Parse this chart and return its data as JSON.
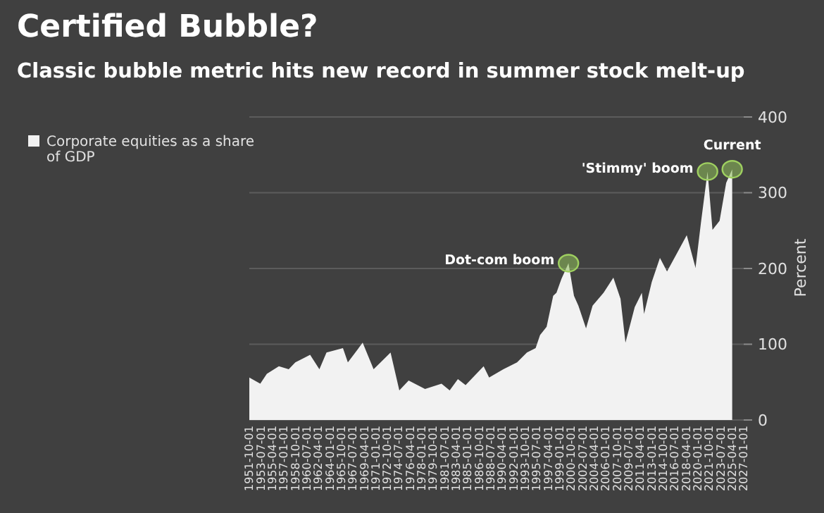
{
  "chart_data": {
    "type": "area",
    "title": "Certified Bubble?",
    "subtitle": "Classic bubble metric hits new record in summer stock melt-up",
    "ylabel": "Percent",
    "x": [
      "1951-10",
      "1953-06",
      "1954-06",
      "1956-04",
      "1957-10",
      "1958-10",
      "1961-01",
      "1962-06",
      "1963-07",
      "1966-01",
      "1966-10",
      "1969-01",
      "1970-09",
      "1973-04",
      "1974-08",
      "1976-01",
      "1978-07",
      "1981-01",
      "1982-04",
      "1983-07",
      "1984-09",
      "1987-06",
      "1988-04",
      "1990-06",
      "1992-07",
      "1994-01",
      "1995-05",
      "1996-01",
      "1997-01",
      "1998-01",
      "1998-07",
      "1999-04",
      "2000-05",
      "2001-03",
      "2001-11",
      "2003-01",
      "2004-01",
      "2005-09",
      "2007-03",
      "2008-04",
      "2009-01",
      "2010-06",
      "2011-07",
      "2011-11",
      "2013-01",
      "2014-04",
      "2015-05",
      "2016-11",
      "2018-05",
      "2019-09",
      "2020-07",
      "2021-07",
      "2022-04",
      "2023-05",
      "2024-05",
      "2025-04"
    ],
    "series": [
      {
        "name": "Corporate equities as a share of GDP",
        "color": "#f2f2f2",
        "values": [
          56,
          48,
          61,
          71,
          67,
          76,
          86,
          67,
          89,
          95,
          76,
          102,
          67,
          89,
          39,
          52,
          41,
          48,
          39,
          54,
          46,
          71,
          56,
          67,
          76,
          89,
          95,
          112,
          123,
          164,
          168,
          186,
          207,
          164,
          151,
          121,
          151,
          168,
          188,
          160,
          102,
          149,
          168,
          140,
          182,
          214,
          196,
          220,
          244,
          201,
          261,
          328,
          251,
          263,
          313,
          331
        ]
      }
    ],
    "xlim": [
      "1951-10-01",
      "2027-01-01"
    ],
    "xticks": [
      "1951-10-01",
      "1953-07-01",
      "1955-04-01",
      "1957-01-01",
      "1958-10-01",
      "1960-07-01",
      "1962-04-01",
      "1964-01-01",
      "1965-10-01",
      "1967-07-01",
      "1969-04-01",
      "1971-01-01",
      "1972-10-01",
      "1974-07-01",
      "1976-04-01",
      "1978-01-01",
      "1979-10-01",
      "1981-07-01",
      "1983-04-01",
      "1985-01-01",
      "1986-10-01",
      "1988-07-01",
      "1990-04-01",
      "1992-01-01",
      "1993-10-01",
      "1995-07-01",
      "1997-04-01",
      "1999-01-01",
      "2000-10-01",
      "2002-07-01",
      "2004-04-01",
      "2006-01-01",
      "2007-10-01",
      "2009-07-01",
      "2011-04-01",
      "2013-01-01",
      "2014-10-01",
      "2016-07-01",
      "2018-04-01",
      "2020-01-01",
      "2021-10-01",
      "2023-07-01",
      "2025-04-01",
      "2027-01-01"
    ],
    "ylim": [
      0,
      400
    ],
    "yticks": [
      0,
      100,
      200,
      300,
      400
    ],
    "grid": "y",
    "legend": "top left",
    "annotations": [
      {
        "text": "Dot-com boom",
        "x": "2000-05",
        "y": 207
      },
      {
        "text": "'Stimmy' boom",
        "x": "2021-07",
        "y": 328
      },
      {
        "text": "Current",
        "x": "2025-04",
        "y": 331
      }
    ]
  }
}
